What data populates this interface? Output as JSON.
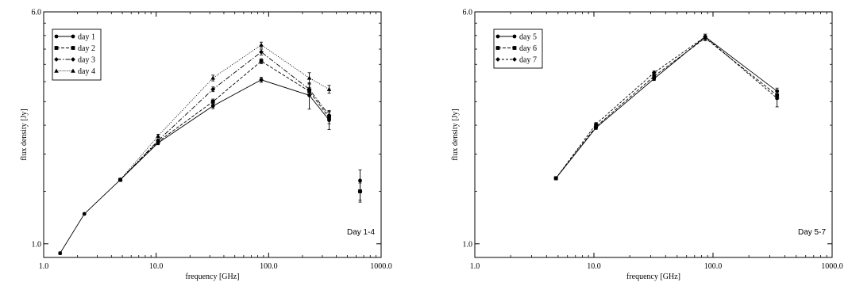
{
  "chart_data": [
    {
      "type": "line",
      "annotation": "Day 1-4",
      "xlabel": "frequency [GHz]",
      "ylabel": "flux density [Jy]",
      "xscale": "log",
      "yscale": "log",
      "xlim": [
        1.0,
        1000.0
      ],
      "ylim": [
        0.9,
        6.0
      ],
      "xticks": [
        1.0,
        10.0,
        100.0,
        1000.0
      ],
      "xtick_labels": [
        "1.0",
        "10.0",
        "100.0",
        "1000.0"
      ],
      "yticks": [
        1.0,
        6.0
      ],
      "ytick_labels": [
        "1.0",
        "6.0"
      ],
      "grid": false,
      "legend_position": "top-left",
      "series": [
        {
          "name": "day 1",
          "marker": "circle",
          "line_style": "solid",
          "x": [
            1.4,
            2.3,
            4.8,
            10.4,
            32,
            86,
            230,
            345,
            650
          ],
          "y": [
            0.93,
            1.26,
            1.64,
            2.18,
            2.9,
            3.55,
            3.15,
            2.6,
            1.63
          ],
          "y_err": [
            0.01,
            0.01,
            0.02,
            0.03,
            0.06,
            0.07,
            0.32,
            0.18,
            0.14
          ],
          "connected_points": 8
        },
        {
          "name": "day 2",
          "marker": "square",
          "line_style": "dashed",
          "x": [
            4.8,
            10.4,
            32,
            86,
            230,
            345,
            650
          ],
          "y": [
            1.64,
            2.2,
            3.0,
            4.1,
            3.25,
            2.65,
            1.5
          ],
          "y_err": [
            0.02,
            0.03,
            0.06,
            0.08,
            0.1,
            0.12,
            0.12
          ],
          "connected_points": 6
        },
        {
          "name": "day 3",
          "marker": "diamond",
          "line_style": "dash-dot",
          "x": [
            4.8,
            10.4,
            32,
            86,
            230,
            345,
            650
          ],
          "y": [
            1.64,
            2.22,
            3.3,
            4.4,
            3.3,
            2.7,
            1.5
          ],
          "y_err": [
            0.02,
            0.03,
            0.06,
            0.1,
            0.12,
            0.1,
            0.1
          ],
          "connected_points": 6
        },
        {
          "name": "day 4",
          "marker": "triangle",
          "line_style": "dotted",
          "x": [
            4.8,
            10.4,
            32,
            86,
            230,
            345
          ],
          "y": [
            1.64,
            2.3,
            3.6,
            4.65,
            3.6,
            3.3
          ],
          "y_err": [
            0.02,
            0.03,
            0.08,
            0.1,
            0.15,
            0.1
          ],
          "connected_points": 6
        }
      ]
    },
    {
      "type": "line",
      "annotation": "Day 5-7",
      "xlabel": "frequency [GHz]",
      "ylabel": "flux density [Jy]",
      "xscale": "log",
      "yscale": "log",
      "xlim": [
        1.0,
        1000.0
      ],
      "ylim": [
        0.9,
        6.0
      ],
      "xticks": [
        1.0,
        10.0,
        100.0,
        1000.0
      ],
      "xtick_labels": [
        "1.0",
        "10.0",
        "100.0",
        "1000.0"
      ],
      "yticks": [
        1.0,
        6.0
      ],
      "ytick_labels": [
        "1.0",
        "6.0"
      ],
      "grid": false,
      "legend_position": "top-left",
      "series": [
        {
          "name": "day 5",
          "marker": "circle",
          "line_style": "solid",
          "x": [
            4.8,
            10.4,
            32,
            86,
            345
          ],
          "y": [
            1.66,
            2.45,
            3.58,
            4.95,
            3.25
          ],
          "y_err": [
            0.02,
            0.03,
            0.05,
            0.1,
            0.08
          ],
          "connected_points": 5
        },
        {
          "name": "day 6",
          "marker": "square",
          "line_style": "dashed",
          "x": [
            4.8,
            10.4,
            32,
            86,
            345
          ],
          "y": [
            1.66,
            2.47,
            3.65,
            4.9,
            3.15
          ],
          "y_err": [
            0.02,
            0.03,
            0.05,
            0.1,
            0.1
          ],
          "connected_points": 5
        },
        {
          "name": "day 7",
          "marker": "diamond",
          "line_style": "short-dashed",
          "x": [
            4.8,
            10.4,
            32,
            86,
            345
          ],
          "y": [
            1.66,
            2.52,
            3.75,
            4.95,
            3.08
          ],
          "y_err": [
            0.02,
            0.03,
            0.05,
            0.1,
            0.2
          ],
          "connected_points": 5
        }
      ]
    }
  ]
}
